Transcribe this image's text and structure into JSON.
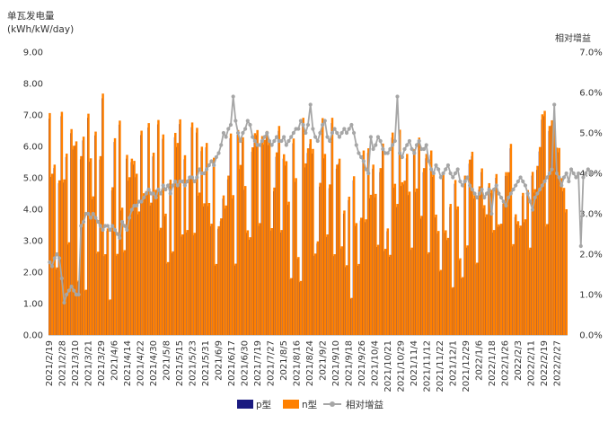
{
  "chart_data": {
    "type": "bar",
    "ylabel_left": [
      "单瓦发电量",
      "(kWh/kW/day)"
    ],
    "ylabel_right": "相对增益",
    "y_left": {
      "min": 0,
      "max": 9,
      "step": 1,
      "tick_labels": [
        "0.00",
        "1.00",
        "2.00",
        "3.00",
        "4.00",
        "5.00",
        "6.00",
        "7.00",
        "8.00",
        "9.00"
      ]
    },
    "y_right": {
      "min": 0,
      "max": 7,
      "step": 1,
      "tick_labels": [
        "0.0%",
        "1.0%",
        "2.0%",
        "3.0%",
        "4.0%",
        "5.0%",
        "6.0%",
        "7.0%"
      ]
    },
    "date_range": [
      "2021/2/19",
      "2022/2/27"
    ],
    "x_tick_labels": [
      "2021/2/19",
      "2021/2/28",
      "2021/3/10",
      "2021/3/21",
      "2021/3/29",
      "2021/4/6",
      "2021/4/14",
      "2021/4/22",
      "2021/4/30",
      "2021/5/8",
      "2021/5/15",
      "2021/5/23",
      "2021/5/31",
      "2021/6/9",
      "2021/6/17",
      "2021/6/30",
      "2021/7/19",
      "2021/7/27",
      "2021/8/5",
      "2021/8/16",
      "2021/8/24",
      "2021/9/2",
      "2021/9/10",
      "2021/9/18",
      "2021/9/26",
      "2021/10/4",
      "2021/10/21",
      "2021/10/29",
      "2021/11/4",
      "2021/11/12",
      "2021/11/22",
      "2021/12/1",
      "2021/12/29",
      "2022/1/6",
      "2022/1/18",
      "2022/1/26",
      "2022/2/3",
      "2022/2/11",
      "2022/2/19",
      "2022/2/27"
    ],
    "series": [
      {
        "name": "p型",
        "type": "bar",
        "color": "#1a1a80",
        "values": [
          6.88,
          5.03,
          5.31,
          2.09,
          4.83,
          6.96,
          4.85,
          5.66,
          2.88,
          6.42,
          5.9,
          6.04,
          1.69,
          5.59,
          6.19,
          1.41,
          6.91,
          5.51,
          4.32,
          6.35,
          2.59,
          5.58,
          7.53,
          2.51,
          3.31,
          1.1,
          4.6,
          6.14,
          2.52,
          6.69,
          3.96,
          2.63,
          5.61,
          4.91,
          5.5,
          5.42,
          5.02,
          3.84,
          6.36,
          4.41,
          4.48,
          6.6,
          4.12,
          5.68,
          4.52,
          6.7,
          3.33,
          6.24,
          3.78,
          2.27,
          4.83,
          2.6,
          6.29,
          5.98,
          6.71,
          3.13,
          5.59,
          3.26,
          4.92,
          6.61,
          3.17,
          6.44,
          4.43,
          5.85,
          4.09,
          5.97,
          4.1,
          3.46,
          5.51,
          2.21,
          3.38,
          3.62,
          4.34,
          4.02,
          4.95,
          6.26,
          4.34,
          2.21,
          6.37,
          5.28,
          6.14,
          4.62,
          3.25,
          3.03,
          5.83,
          6.27,
          6.36,
          3.47,
          6.18,
          6.06,
          6.33,
          6.04,
          3.32,
          4.57,
          5.67,
          6.49,
          3.26,
          5.61,
          5.39,
          4.14,
          1.77,
          6.1,
          4.87,
          2.42,
          1.68,
          6.74,
          5.33,
          5.79,
          6.08,
          5.77,
          2.52,
          2.91,
          4.72,
          6.73,
          5.62,
          3.12,
          4.67,
          6.74,
          2.51,
          5.29,
          5.47,
          2.75,
          3.86,
          2.16,
          4.29,
          1.15,
          4.92,
          3.47,
          2.2,
          3.64,
          5.72,
          3.59,
          5.79,
          4.35,
          5.29,
          4.38,
          2.8,
          5.18,
          5.94,
          2.67,
          3.3,
          2.49,
          6.28,
          4.69,
          4.07,
          6.37,
          4.74,
          4.79,
          5.62,
          4.45,
          2.71,
          5.77,
          4.55,
          6.13,
          3.7,
          5.18,
          5.62,
          2.57,
          5.73,
          5.03,
          3.74,
          3.23,
          2.02,
          4.99,
          3.25,
          3.02,
          4.07,
          1.48,
          4.81,
          3.99,
          2.38,
          1.8,
          4.95,
          2.78,
          5.45,
          5.69,
          4.34,
          2.25,
          4.62,
          5.18,
          4.03,
          3.75,
          4.72,
          4.51,
          3.26,
          5.0,
          3.44,
          3.46,
          4.17,
          5.06,
          5.06,
          5.94,
          2.82,
          3.75,
          3.53,
          3.4,
          4.42,
          3.59,
          4.5,
          2.71,
          5.07,
          4.53,
          5.25,
          5.84,
          6.85,
          6.96,
          3.45,
          6.49,
          6.67,
          6.59,
          5.82,
          5.81,
          4.87,
          4.57,
          3.9
        ]
      },
      {
        "name": "n型",
        "type": "bar",
        "color": "#ff8000",
        "values": [
          7.06,
          5.13,
          5.42,
          2.15,
          4.92,
          7.1,
          4.95,
          5.77,
          2.95,
          6.55,
          6.02,
          6.16,
          1.73,
          5.69,
          6.31,
          1.44,
          7.04,
          5.62,
          4.41,
          6.47,
          2.65,
          5.69,
          7.68,
          2.57,
          3.39,
          1.13,
          4.7,
          6.26,
          2.58,
          6.82,
          4.05,
          2.7,
          5.73,
          5.02,
          5.61,
          5.54,
          5.13,
          3.93,
          6.5,
          4.51,
          4.58,
          6.74,
          4.21,
          5.8,
          4.62,
          6.84,
          3.41,
          6.38,
          3.86,
          2.32,
          4.94,
          2.66,
          6.43,
          6.11,
          6.86,
          3.2,
          5.72,
          3.34,
          5.03,
          6.76,
          3.25,
          6.59,
          4.53,
          5.99,
          4.19,
          6.11,
          4.2,
          3.54,
          5.64,
          2.26,
          3.46,
          3.71,
          4.44,
          4.12,
          5.07,
          6.41,
          4.45,
          2.27,
          6.52,
          5.41,
          6.29,
          4.74,
          3.33,
          3.11,
          5.97,
          6.42,
          6.52,
          3.56,
          6.33,
          6.21,
          6.49,
          6.19,
          3.4,
          4.69,
          5.81,
          6.65,
          3.34,
          5.75,
          5.53,
          4.24,
          1.81,
          6.25,
          4.99,
          2.48,
          1.72,
          6.91,
          5.46,
          5.94,
          6.23,
          5.92,
          2.59,
          2.98,
          4.84,
          6.9,
          5.76,
          3.2,
          4.79,
          6.91,
          2.57,
          5.42,
          5.61,
          2.82,
          3.96,
          2.22,
          4.4,
          1.18,
          5.05,
          3.56,
          2.26,
          3.73,
          5.87,
          3.68,
          5.94,
          4.46,
          5.42,
          4.49,
          2.87,
          5.31,
          6.09,
          2.74,
          3.39,
          2.55,
          6.44,
          4.81,
          4.17,
          6.53,
          4.86,
          4.91,
          5.76,
          4.56,
          2.78,
          5.91,
          4.66,
          6.28,
          3.79,
          5.31,
          5.76,
          2.63,
          5.87,
          5.15,
          3.83,
          3.31,
          2.07,
          5.11,
          3.33,
          3.09,
          4.17,
          1.52,
          4.93,
          4.09,
          2.44,
          1.84,
          5.07,
          2.85,
          5.58,
          5.83,
          4.44,
          2.3,
          4.73,
          5.3,
          4.13,
          3.84,
          4.83,
          4.62,
          3.34,
          5.12,
          3.52,
          3.54,
          4.27,
          5.18,
          5.18,
          6.08,
          2.89,
          3.84,
          3.62,
          3.48,
          4.52,
          3.68,
          4.61,
          2.78,
          5.19,
          4.64,
          5.38,
          5.98,
          7.02,
          7.13,
          3.53,
          6.65,
          6.83,
          6.75,
          5.96,
          5.95,
          4.99,
          4.68,
          4.0
        ]
      },
      {
        "name": "相对增益",
        "type": "line",
        "axis": "right",
        "color": "#a6a6a6",
        "values": [
          1.8,
          1.7,
          1.9,
          2.0,
          1.9,
          1.4,
          0.8,
          1.0,
          1.1,
          1.2,
          1.1,
          1.0,
          1.0,
          2.7,
          2.8,
          3.0,
          3.0,
          2.9,
          3.0,
          2.9,
          2.8,
          2.7,
          2.6,
          2.7,
          2.7,
          2.6,
          2.7,
          2.6,
          2.5,
          2.4,
          2.8,
          2.7,
          2.6,
          2.9,
          3.1,
          3.2,
          3.2,
          3.3,
          3.3,
          3.4,
          3.5,
          3.6,
          3.5,
          3.5,
          3.4,
          3.6,
          3.5,
          3.7,
          3.6,
          3.7,
          3.5,
          3.7,
          3.8,
          3.7,
          3.8,
          3.8,
          3.7,
          3.8,
          3.9,
          3.9,
          3.8,
          3.9,
          4.1,
          4.0,
          4.0,
          4.1,
          4.2,
          4.3,
          4.2,
          4.4,
          4.5,
          4.7,
          5.0,
          4.9,
          5.1,
          5.2,
          5.9,
          5.3,
          5.0,
          4.8,
          5.0,
          5.1,
          5.3,
          5.2,
          4.9,
          4.8,
          4.7,
          4.7,
          4.8,
          4.9,
          5.0,
          4.8,
          4.7,
          4.8,
          4.9,
          4.8,
          4.8,
          4.9,
          4.7,
          4.8,
          4.9,
          5.0,
          5.1,
          5.1,
          5.3,
          5.2,
          5.0,
          5.2,
          5.7,
          5.1,
          4.9,
          4.8,
          5.0,
          5.2,
          5.3,
          4.9,
          4.8,
          5.0,
          5.1,
          5.0,
          4.9,
          5.0,
          5.1,
          5.0,
          5.1,
          5.2,
          5.0,
          4.7,
          4.5,
          4.4,
          4.3,
          4.1,
          4.0,
          4.9,
          4.6,
          4.7,
          4.9,
          4.8,
          4.6,
          4.5,
          4.5,
          4.6,
          4.7,
          4.8,
          5.9,
          4.5,
          4.4,
          4.6,
          4.7,
          4.8,
          4.6,
          4.5,
          4.7,
          4.8,
          4.6,
          4.6,
          4.7,
          4.3,
          4.1,
          4.0,
          4.2,
          4.1,
          3.9,
          4.0,
          4.1,
          4.2,
          4.0,
          3.9,
          4.0,
          4.1,
          3.8,
          3.7,
          3.8,
          3.9,
          3.7,
          3.6,
          3.5,
          3.4,
          3.5,
          3.6,
          3.4,
          3.5,
          3.6,
          3.0,
          3.6,
          3.7,
          3.5,
          3.4,
          3.3,
          3.2,
          3.4,
          3.5,
          3.6,
          3.7,
          3.8,
          3.9,
          3.8,
          3.7,
          3.5,
          3.3,
          3.1,
          3.4,
          3.5,
          3.6,
          3.7,
          3.8,
          3.9,
          4.0,
          4.1,
          5.7,
          4.0,
          3.9,
          3.7,
          3.9,
          4.0,
          3.8,
          4.1,
          4.0,
          3.9,
          4.0,
          2.2,
          3.9,
          4.0,
          4.1,
          4.0,
          4.0
        ]
      }
    ],
    "legend": {
      "placement": "bottom",
      "items": [
        {
          "label": "p型",
          "color": "#1a1a80",
          "kind": "bar"
        },
        {
          "label": "n型",
          "color": "#ff8000",
          "kind": "bar"
        },
        {
          "label": "相对增益",
          "color": "#a6a6a6",
          "kind": "line"
        }
      ]
    },
    "grid": false
  }
}
